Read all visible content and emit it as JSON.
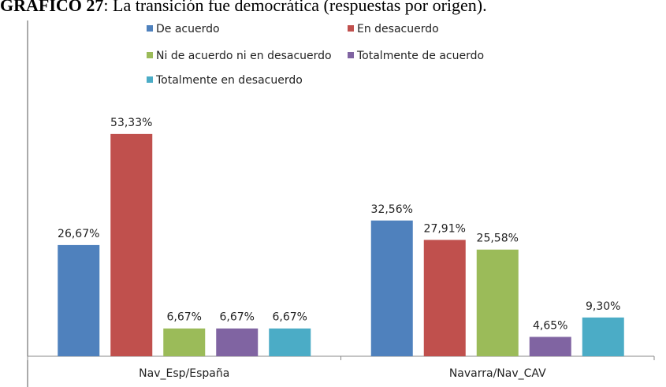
{
  "chart_data": {
    "type": "bar",
    "title_label": "GRÁFICO 27",
    "title": ": La transición fue democrática (respuestas por origen).",
    "categories": [
      "Nav_Esp/España",
      "Navarra/Nav_CAV"
    ],
    "series": [
      {
        "name": "De acuerdo",
        "color": "#4f81bd",
        "values": [
          26.67,
          32.56
        ],
        "value_labels": [
          "26,67%",
          "32,56%"
        ]
      },
      {
        "name": "En desacuerdo",
        "color": "#c0504d",
        "values": [
          53.33,
          27.91
        ],
        "value_labels": [
          "53,33%",
          "27,91%"
        ]
      },
      {
        "name": "Ni de acuerdo ni en desacuerdo",
        "color": "#9bbb59",
        "values": [
          6.67,
          25.58
        ],
        "value_labels": [
          "6,67%",
          "25,58%"
        ]
      },
      {
        "name": "Totalmente de acuerdo",
        "color": "#8064a2",
        "values": [
          6.67,
          4.65
        ],
        "value_labels": [
          "6,67%",
          "4,65%"
        ]
      },
      {
        "name": "Totalmente en desacuerdo",
        "color": "#4bacc6",
        "values": [
          6.67,
          9.3
        ],
        "value_labels": [
          "6,67%",
          "9,30%"
        ]
      }
    ],
    "legend": "top"
  }
}
